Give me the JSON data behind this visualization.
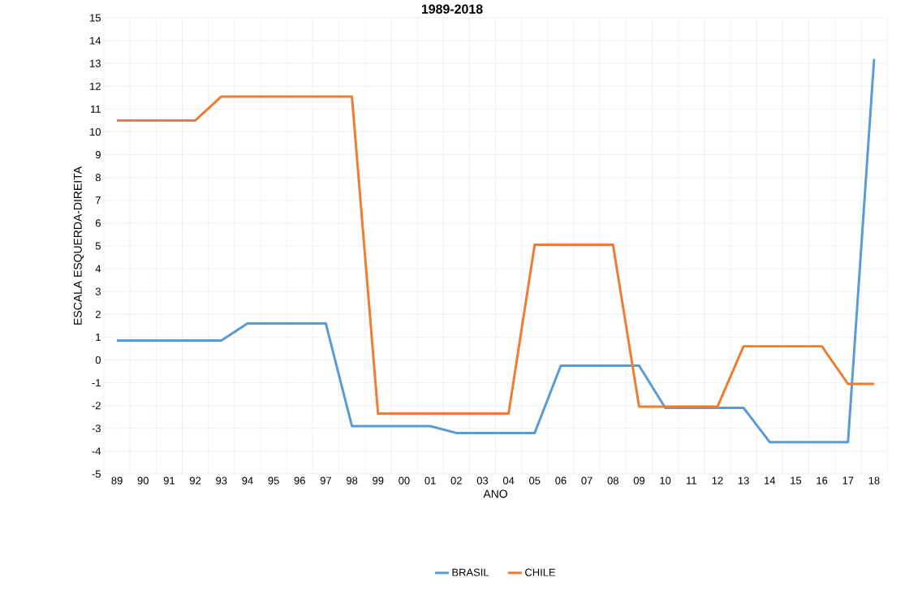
{
  "chart_data": {
    "type": "line",
    "title": "1989-2018",
    "xlabel": "ANO",
    "ylabel": "ESCALA ESQUERDA-DIREITA",
    "categories": [
      "89",
      "90",
      "91",
      "92",
      "93",
      "94",
      "95",
      "96",
      "97",
      "98",
      "99",
      "00",
      "01",
      "02",
      "03",
      "04",
      "05",
      "06",
      "07",
      "08",
      "09",
      "10",
      "11",
      "12",
      "13",
      "14",
      "15",
      "16",
      "17",
      "18"
    ],
    "series": [
      {
        "name": "BRASIL",
        "color": "#5b9bd5",
        "values": [
          0.85,
          0.85,
          0.85,
          0.85,
          0.85,
          1.6,
          1.6,
          1.6,
          1.6,
          -2.9,
          -2.9,
          -2.9,
          -2.9,
          -3.2,
          -3.2,
          -3.2,
          -3.2,
          -0.25,
          -0.25,
          -0.25,
          -0.25,
          -2.1,
          -2.1,
          -2.1,
          -2.1,
          -3.6,
          -3.6,
          -3.6,
          -3.6,
          13.2
        ]
      },
      {
        "name": "CHILE",
        "color": "#ed7d31",
        "values": [
          10.5,
          10.5,
          10.5,
          10.5,
          11.55,
          11.55,
          11.55,
          11.55,
          11.55,
          11.55,
          -2.35,
          -2.35,
          -2.35,
          -2.35,
          -2.35,
          -2.35,
          5.05,
          5.05,
          5.05,
          5.05,
          -2.05,
          -2.05,
          -2.05,
          -2.05,
          0.6,
          0.6,
          0.6,
          0.6,
          -1.05,
          -1.05
        ]
      }
    ],
    "ylim": [
      -5,
      15
    ],
    "yticks": [
      -5,
      -4,
      -3,
      -2,
      -1,
      0,
      1,
      2,
      3,
      4,
      5,
      6,
      7,
      8,
      9,
      10,
      11,
      12,
      13,
      14,
      15
    ],
    "grid": true,
    "legend": "bottom",
    "marker": "none",
    "line_style": "solid"
  }
}
